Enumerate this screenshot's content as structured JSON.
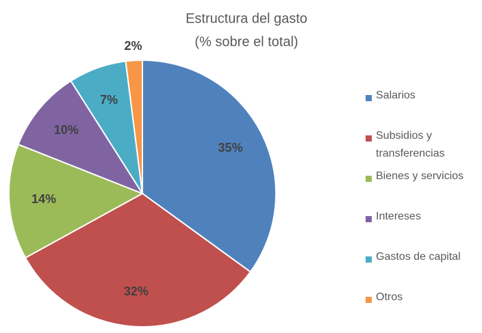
{
  "chart_data": {
    "type": "pie",
    "title": "Estructura del gasto",
    "subtitle": "(% sobre el total)",
    "categories": [
      "Salarios",
      "Subsidios y transferencias",
      "Bienes y servicios",
      "Intereses",
      "Gastos de capital",
      "Otros"
    ],
    "values": [
      35,
      32,
      14,
      10,
      7,
      2
    ],
    "value_labels": [
      "35%",
      "32%",
      "14%",
      "10%",
      "7%",
      "2%"
    ],
    "colors": [
      "#4f81bd",
      "#c0504d",
      "#9bbb59",
      "#8064a2",
      "#4bacc6",
      "#f79646"
    ],
    "legend": "right"
  }
}
